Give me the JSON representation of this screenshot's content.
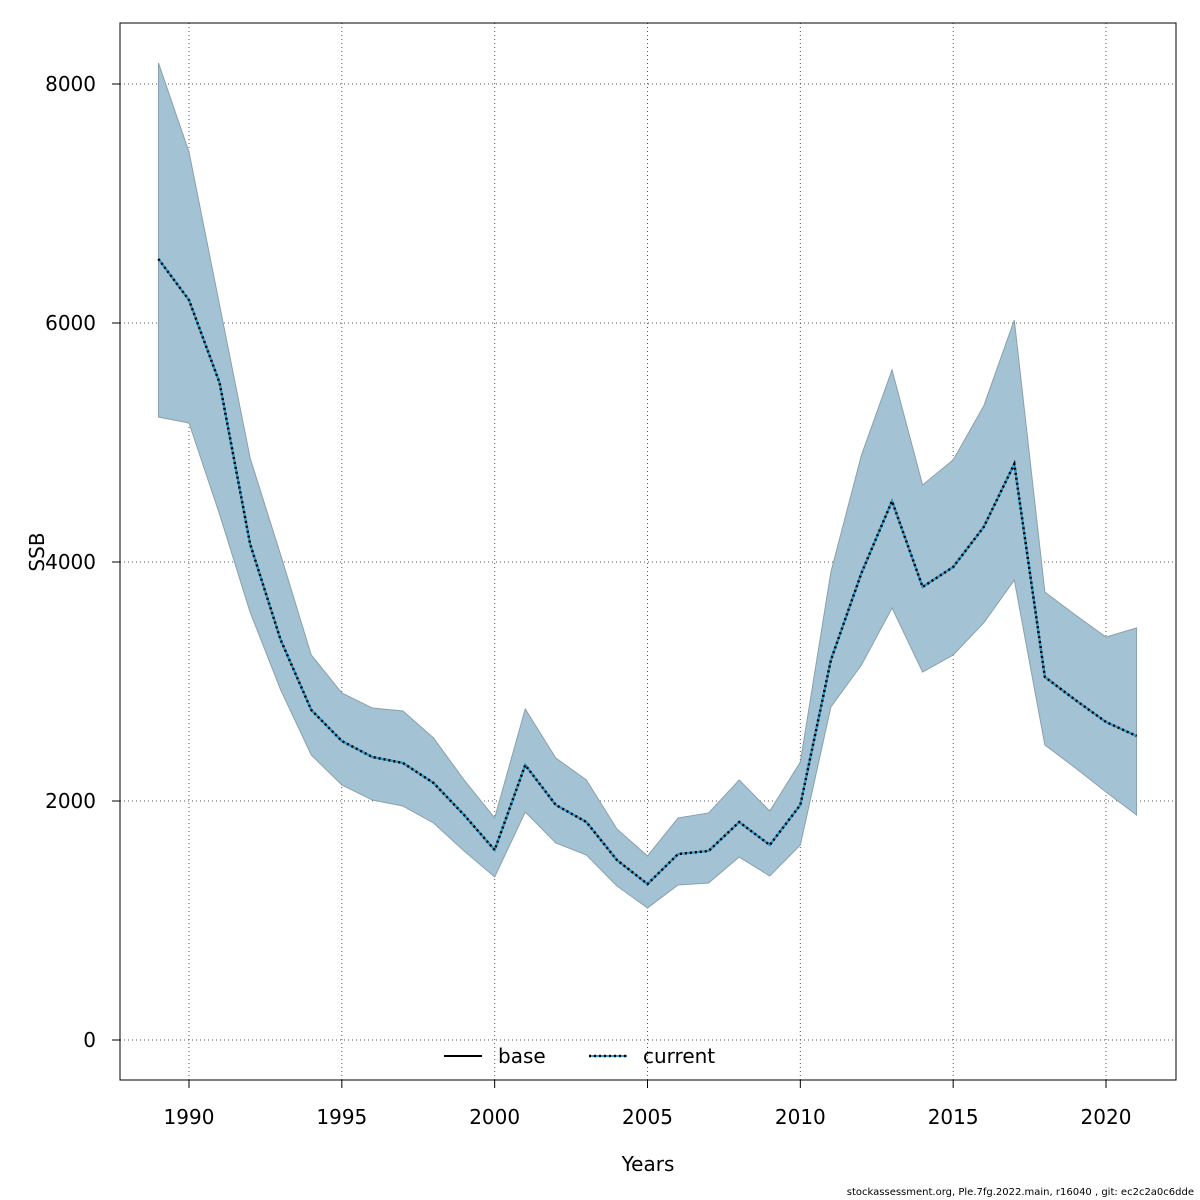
{
  "chart_data": {
    "type": "area",
    "title": "",
    "xlabel": "Years",
    "ylabel": "SSB",
    "xlim": [
      1987.7,
      2022.3
    ],
    "ylim": [
      -320,
      8500
    ],
    "xticks": [
      1990,
      1995,
      2000,
      2005,
      2010,
      2015,
      2020
    ],
    "yticks": [
      0,
      2000,
      4000,
      6000,
      8000
    ],
    "grid": true,
    "legend_position": "bottom",
    "x": [
      1989,
      1990,
      1991,
      1992,
      1993,
      1994,
      1995,
      1996,
      1997,
      1998,
      1999,
      2000,
      2001,
      2002,
      2003,
      2004,
      2005,
      2006,
      2007,
      2008,
      2009,
      2010,
      2011,
      2012,
      2013,
      2014,
      2015,
      2016,
      2017,
      2018,
      2019,
      2020,
      2021
    ],
    "series": [
      {
        "name": "base",
        "style": "solid",
        "color": "#000000",
        "values": [
          6536,
          6192,
          5500,
          4150,
          3347,
          2762,
          2502,
          2368,
          2318,
          2151,
          1883,
          1590,
          2301,
          1967,
          1824,
          1506,
          1305,
          1556,
          1582,
          1824,
          1632,
          1967,
          3180,
          3908,
          4510,
          3791,
          3958,
          4293,
          4820,
          3038,
          2845,
          2661,
          2544
        ]
      },
      {
        "name": "current",
        "style": "dotted",
        "color": "#000000",
        "underlay_color": "#2a9fd6",
        "values": [
          6536,
          6192,
          5500,
          4150,
          3347,
          2762,
          2502,
          2368,
          2318,
          2151,
          1883,
          1590,
          2301,
          1967,
          1824,
          1506,
          1305,
          1556,
          1582,
          1824,
          1632,
          1967,
          3180,
          3908,
          4510,
          3791,
          3958,
          4293,
          4820,
          3038,
          2845,
          2661,
          2544
        ]
      }
    ],
    "band": {
      "color": "#a3c3d4",
      "upper": [
        8176,
        7431,
        6150,
        4870,
        4058,
        3222,
        2904,
        2778,
        2753,
        2527,
        2176,
        1858,
        2770,
        2360,
        2176,
        1766,
        1540,
        1858,
        1900,
        2176,
        1916,
        2326,
        3916,
        4895,
        5607,
        4644,
        4854,
        5305,
        6025,
        3749,
        3556,
        3372,
        3448
      ],
      "lower": [
        5213,
        5163,
        4400,
        3580,
        2929,
        2385,
        2134,
        2008,
        1958,
        1816,
        1582,
        1364,
        1908,
        1649,
        1548,
        1289,
        1105,
        1297,
        1314,
        1531,
        1372,
        1632,
        2787,
        3138,
        3615,
        3079,
        3222,
        3490,
        3849,
        2469,
        2276,
        2075,
        1883
      ]
    }
  },
  "footer": "stockassessment.org, Ple.7fg.2022.main, r16040 , git: ec2c2a0c6dde"
}
